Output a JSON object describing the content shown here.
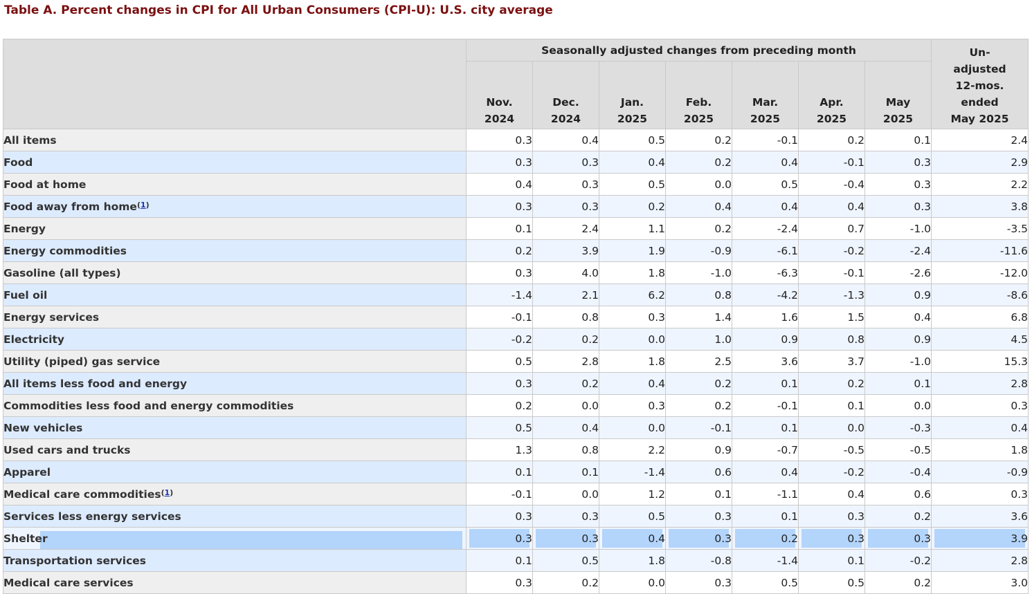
{
  "title": "Table A. Percent changes in CPI for All Urban Consumers (CPI-U): U.S. city average",
  "header": {
    "group_label": "Seasonally adjusted changes from preceding month",
    "months": [
      {
        "line1": "Nov.",
        "line2": "2024"
      },
      {
        "line1": "Dec.",
        "line2": "2024"
      },
      {
        "line1": "Jan.",
        "line2": "2025"
      },
      {
        "line1": "Feb.",
        "line2": "2025"
      },
      {
        "line1": "Mar.",
        "line2": "2025"
      },
      {
        "line1": "Apr.",
        "line2": "2025"
      },
      {
        "line1": "May",
        "line2": "2025"
      }
    ],
    "unadjusted": {
      "line1": "Un-",
      "line2": "adjusted",
      "line3": "12-mos.",
      "line4": "ended",
      "line5": "May 2025"
    }
  },
  "rows": [
    {
      "label": "All items",
      "level": 0,
      "values": [
        "0.3",
        "0.4",
        "0.5",
        "0.2",
        "-0.1",
        "0.2",
        "0.1"
      ],
      "annual": "2.4"
    },
    {
      "label": "Food",
      "level": 1,
      "values": [
        "0.3",
        "0.3",
        "0.4",
        "0.2",
        "0.4",
        "-0.1",
        "0.3"
      ],
      "annual": "2.9"
    },
    {
      "label": "Food at home",
      "level": 2,
      "values": [
        "0.4",
        "0.3",
        "0.5",
        "0.0",
        "0.5",
        "-0.4",
        "0.3"
      ],
      "annual": "2.2"
    },
    {
      "label": "Food away from home",
      "footnote": "1",
      "level": 2,
      "values": [
        "0.3",
        "0.3",
        "0.2",
        "0.4",
        "0.4",
        "0.4",
        "0.3"
      ],
      "annual": "3.8"
    },
    {
      "label": "Energy",
      "level": 1,
      "values": [
        "0.1",
        "2.4",
        "1.1",
        "0.2",
        "-2.4",
        "0.7",
        "-1.0"
      ],
      "annual": "-3.5"
    },
    {
      "label": "Energy commodities",
      "level": 2,
      "values": [
        "0.2",
        "3.9",
        "1.9",
        "-0.9",
        "-6.1",
        "-0.2",
        "-2.4"
      ],
      "annual": "-11.6"
    },
    {
      "label": "Gasoline (all types)",
      "level": 3,
      "values": [
        "0.3",
        "4.0",
        "1.8",
        "-1.0",
        "-6.3",
        "-0.1",
        "-2.6"
      ],
      "annual": "-12.0"
    },
    {
      "label": "Fuel oil",
      "level": 3,
      "values": [
        "-1.4",
        "2.1",
        "6.2",
        "0.8",
        "-4.2",
        "-1.3",
        "0.9"
      ],
      "annual": "-8.6"
    },
    {
      "label": "Energy services",
      "level": 2,
      "values": [
        "-0.1",
        "0.8",
        "0.3",
        "1.4",
        "1.6",
        "1.5",
        "0.4"
      ],
      "annual": "6.8"
    },
    {
      "label": "Electricity",
      "level": 3,
      "values": [
        "-0.2",
        "0.2",
        "0.0",
        "1.0",
        "0.9",
        "0.8",
        "0.9"
      ],
      "annual": "4.5"
    },
    {
      "label": "Utility (piped) gas service",
      "level": 3,
      "values": [
        "0.5",
        "2.8",
        "1.8",
        "2.5",
        "3.6",
        "3.7",
        "-1.0"
      ],
      "annual": "15.3"
    },
    {
      "label": "All items less food and energy",
      "level": 1,
      "values": [
        "0.3",
        "0.2",
        "0.4",
        "0.2",
        "0.1",
        "0.2",
        "0.1"
      ],
      "annual": "2.8"
    },
    {
      "label": "Commodities less food and energy commodities",
      "level": 2,
      "values": [
        "0.2",
        "0.0",
        "0.3",
        "0.2",
        "-0.1",
        "0.1",
        "0.0"
      ],
      "annual": "0.3"
    },
    {
      "label": "New vehicles",
      "level": 3,
      "values": [
        "0.5",
        "0.4",
        "0.0",
        "-0.1",
        "0.1",
        "0.0",
        "-0.3"
      ],
      "annual": "0.4"
    },
    {
      "label": "Used cars and trucks",
      "level": 3,
      "values": [
        "1.3",
        "0.8",
        "2.2",
        "0.9",
        "-0.7",
        "-0.5",
        "-0.5"
      ],
      "annual": "1.8"
    },
    {
      "label": "Apparel",
      "level": 3,
      "values": [
        "0.1",
        "0.1",
        "-1.4",
        "0.6",
        "0.4",
        "-0.2",
        "-0.4"
      ],
      "annual": "-0.9"
    },
    {
      "label": "Medical care commodities",
      "footnote": "1",
      "level": 3,
      "values": [
        "-0.1",
        "0.0",
        "1.2",
        "0.1",
        "-1.1",
        "0.4",
        "0.6"
      ],
      "annual": "0.3"
    },
    {
      "label": "Services less energy services",
      "level": 2,
      "values": [
        "0.3",
        "0.3",
        "0.5",
        "0.3",
        "0.1",
        "0.3",
        "0.2"
      ],
      "annual": "3.6"
    },
    {
      "label": "Shelter",
      "level": 3,
      "selected": true,
      "values": [
        "0.3",
        "0.3",
        "0.4",
        "0.3",
        "0.2",
        "0.3",
        "0.3"
      ],
      "annual": "3.9"
    },
    {
      "label": "Transportation services",
      "level": 3,
      "values": [
        "0.1",
        "0.5",
        "1.8",
        "-0.8",
        "-1.4",
        "0.1",
        "-0.2"
      ],
      "annual": "2.8"
    },
    {
      "label": "Medical care services",
      "level": 3,
      "values": [
        "0.3",
        "0.2",
        "0.0",
        "0.3",
        "0.5",
        "0.5",
        "0.2"
      ],
      "annual": "3.0"
    }
  ],
  "colors": {
    "title": "#7b1011",
    "header_bg": "#dedede",
    "label_odd": "#efefef",
    "label_even": "#ddebff",
    "cell_even": "#eff5ff",
    "selection": "#b3d4fb",
    "footnote_link": "#1a33b5"
  }
}
